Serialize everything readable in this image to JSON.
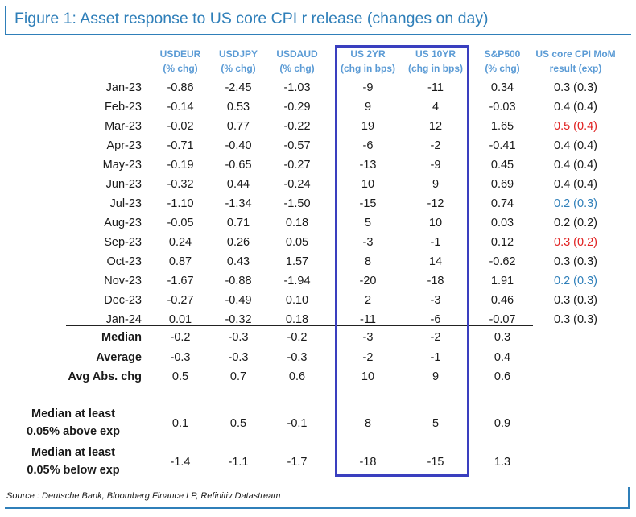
{
  "title": "Figure 1: Asset response to US core CPI r release (changes on day)",
  "columns": [
    {
      "l1": "USDEUR",
      "l2": "(% chg)"
    },
    {
      "l1": "USDJPY",
      "l2": "(% chg)"
    },
    {
      "l1": "USDAUD",
      "l2": "(% chg)"
    },
    {
      "l1": "US 2YR",
      "l2": "(chg in bps)"
    },
    {
      "l1": "US 10YR",
      "l2": "(chg in bps)"
    },
    {
      "l1": "S&P500",
      "l2": "(% chg)"
    },
    {
      "l1": "US core CPI MoM",
      "l2": "result (exp)"
    }
  ],
  "rows": [
    {
      "label": "Jan-23",
      "values": [
        "-0.86",
        "-2.45",
        "-1.03",
        "-9",
        "-11",
        "0.34",
        "0.3 (0.3)"
      ],
      "cpi_color": "#1a1a1a"
    },
    {
      "label": "Feb-23",
      "values": [
        "-0.14",
        "0.53",
        "-0.29",
        "9",
        "4",
        "-0.03",
        "0.4 (0.4)"
      ],
      "cpi_color": "#1a1a1a"
    },
    {
      "label": "Mar-23",
      "values": [
        "-0.02",
        "0.77",
        "-0.22",
        "19",
        "12",
        "1.65",
        "0.5 (0.4)"
      ],
      "cpi_color": "#e02020"
    },
    {
      "label": "Apr-23",
      "values": [
        "-0.71",
        "-0.40",
        "-0.57",
        "-6",
        "-2",
        "-0.41",
        "0.4 (0.4)"
      ],
      "cpi_color": "#1a1a1a"
    },
    {
      "label": "May-23",
      "values": [
        "-0.19",
        "-0.65",
        "-0.27",
        "-13",
        "-9",
        "0.45",
        "0.4 (0.4)"
      ],
      "cpi_color": "#1a1a1a"
    },
    {
      "label": "Jun-23",
      "values": [
        "-0.32",
        "0.44",
        "-0.24",
        "10",
        "9",
        "0.69",
        "0.4 (0.4)"
      ],
      "cpi_color": "#1a1a1a"
    },
    {
      "label": "Jul-23",
      "values": [
        "-1.10",
        "-1.34",
        "-1.50",
        "-15",
        "-12",
        "0.74",
        "0.2 (0.3)"
      ],
      "cpi_color": "#2f7fb9"
    },
    {
      "label": "Aug-23",
      "values": [
        "-0.05",
        "0.71",
        "0.18",
        "5",
        "10",
        "0.03",
        "0.2 (0.2)"
      ],
      "cpi_color": "#1a1a1a"
    },
    {
      "label": "Sep-23",
      "values": [
        "0.24",
        "0.26",
        "0.05",
        "-3",
        "-1",
        "0.12",
        "0.3 (0.2)"
      ],
      "cpi_color": "#e02020"
    },
    {
      "label": "Oct-23",
      "values": [
        "0.87",
        "0.43",
        "1.57",
        "8",
        "14",
        "-0.62",
        "0.3 (0.3)"
      ],
      "cpi_color": "#1a1a1a"
    },
    {
      "label": "Nov-23",
      "values": [
        "-1.67",
        "-0.88",
        "-1.94",
        "-20",
        "-18",
        "1.91",
        "0.2 (0.3)"
      ],
      "cpi_color": "#2f7fb9"
    },
    {
      "label": "Dec-23",
      "values": [
        "-0.27",
        "-0.49",
        "0.10",
        "2",
        "-3",
        "0.46",
        "0.3 (0.3)"
      ],
      "cpi_color": "#1a1a1a"
    },
    {
      "label": "Jan-24",
      "values": [
        "0.01",
        "-0.32",
        "0.18",
        "-11",
        "-6",
        "-0.07",
        "0.3 (0.3)"
      ],
      "cpi_color": "#1a1a1a"
    }
  ],
  "stats": [
    {
      "label": "Median",
      "values": [
        "-0.2",
        "-0.3",
        "-0.2",
        "-3",
        "-2",
        "0.3"
      ]
    },
    {
      "label": "Average",
      "values": [
        "-0.3",
        "-0.3",
        "-0.3",
        "-2",
        "-1",
        "0.4"
      ]
    },
    {
      "label": "Avg Abs. chg",
      "values": [
        "0.5",
        "0.7",
        "0.6",
        "10",
        "9",
        "0.6"
      ]
    }
  ],
  "conditional": [
    {
      "label_l1": "Median at least",
      "label_l2": "0.05% above exp",
      "values": [
        "0.1",
        "0.5",
        "-0.1",
        "8",
        "5",
        "0.9"
      ]
    },
    {
      "label_l1": "Median at least",
      "label_l2": "0.05% below exp",
      "values": [
        "-1.4",
        "-1.1",
        "-1.7",
        "-18",
        "-15",
        "1.3"
      ]
    }
  ],
  "source": "Source : Deutsche Bank, Bloomberg Finance LP, Refinitiv Datastream",
  "colors": {
    "title": "#2f7fb9",
    "header": "#5b9bd5",
    "highlight_box": "#3a3fbf",
    "cpi_above_exp": "#e02020",
    "cpi_below_exp": "#2f7fb9"
  }
}
